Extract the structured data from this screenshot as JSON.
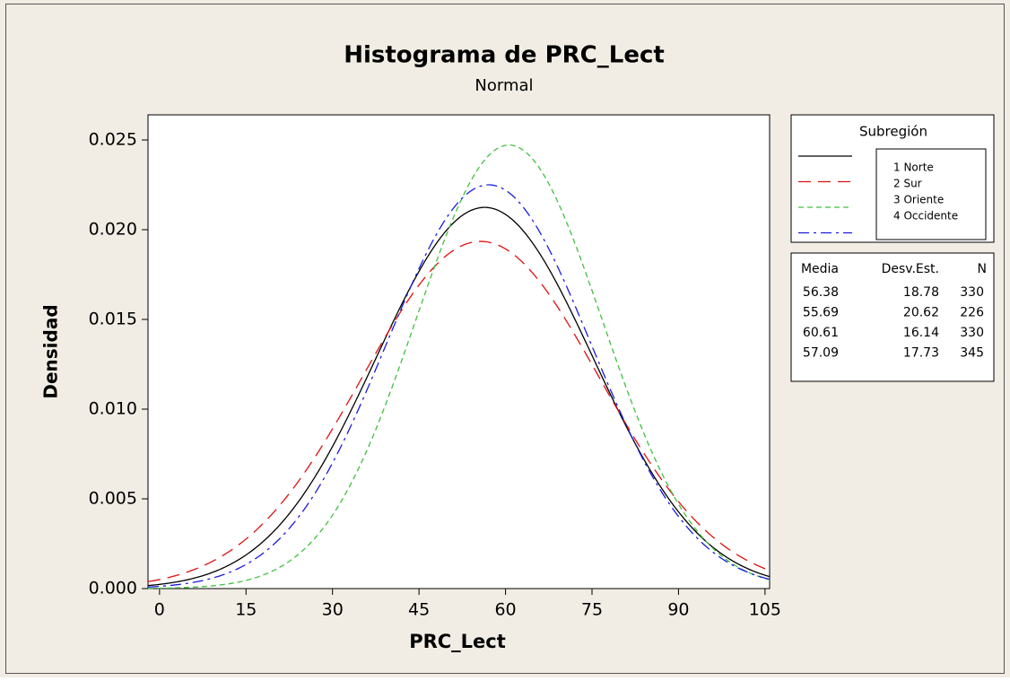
{
  "chart_data": {
    "type": "normal",
    "title": "Histograma de PRC_Lect",
    "subtitle": "Normal",
    "x_label": "PRC_Lect",
    "y_label": "Densidad",
    "xlim": [
      -2,
      105.8
    ],
    "ylim": [
      0,
      0.0264
    ],
    "xticks": [
      0,
      15,
      30,
      45,
      60,
      75,
      90,
      105
    ],
    "yticks": [
      {
        "value": 0,
        "label": "0.000"
      },
      {
        "value": 0.005,
        "label": "0.005"
      },
      {
        "value": 0.01,
        "label": "0.010"
      },
      {
        "value": 0.015,
        "label": "0.015"
      },
      {
        "value": 0.02,
        "label": "0.020"
      },
      {
        "value": 0.025,
        "label": "0.025"
      }
    ],
    "legend_title": "Subregión",
    "stats_headers": [
      "Media",
      "Desv.Est.",
      "N"
    ],
    "series": [
      {
        "name": "1 Norte",
        "color": "#000000",
        "dash": "solid",
        "mean": 56.38,
        "stdev": 18.78,
        "n": 330
      },
      {
        "name": "2 Sur",
        "color": "#e01010",
        "dash": "long",
        "mean": 55.69,
        "stdev": 20.62,
        "n": 226
      },
      {
        "name": "3 Oriente",
        "color": "#40c040",
        "dash": "short",
        "mean": 60.61,
        "stdev": 16.14,
        "n": 330
      },
      {
        "name": "4 Occidente",
        "color": "#1a1ae0",
        "dash": "dashdot",
        "mean": 57.09,
        "stdev": 17.73,
        "n": 345
      }
    ]
  }
}
